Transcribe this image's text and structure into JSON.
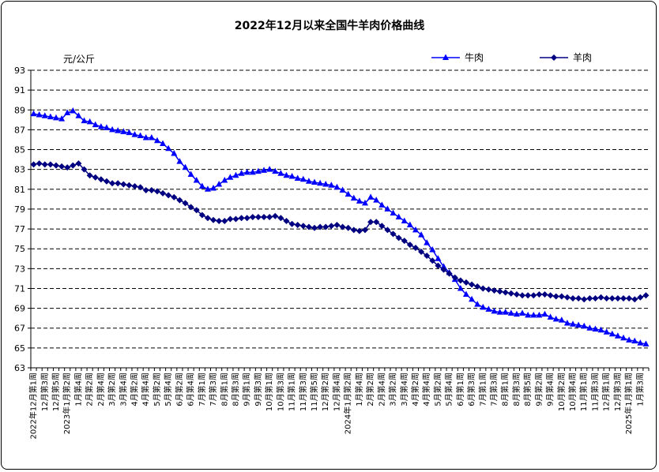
{
  "chart_data": {
    "type": "line",
    "title": "2022年12月以来全国牛羊肉价格曲线",
    "unit": "元/公斤",
    "ylim": [
      63,
      93
    ],
    "yticks": [
      "93",
      "91",
      "89",
      "87",
      "85",
      "83",
      "81",
      "79",
      "77",
      "75",
      "73",
      "71",
      "69",
      "67",
      "65",
      "63"
    ],
    "grid": true,
    "legend_position": "top-right",
    "categories": [
      "2022年12月第1周",
      "12月第2周",
      "12月第3周",
      "12月第4周",
      "12月第5周",
      "2023年1月第1周",
      "1月第2周",
      "1月第3周",
      "1月第4周",
      "2月第1周",
      "2月第2周",
      "2月第3周",
      "2月第4周",
      "3月第1周",
      "3月第2周",
      "3月第3周",
      "3月第4周",
      "4月第1周",
      "4月第2周",
      "4月第3周",
      "4月第4周",
      "5月第1周",
      "5月第2周",
      "5月第3周",
      "5月第4周",
      "6月第1周",
      "6月第2周",
      "6月第3周",
      "6月第4周",
      "6月第5周",
      "7月第1周",
      "7月第2周",
      "7月第3周",
      "7月第4周",
      "8月第1周",
      "8月第2周",
      "8月第3周",
      "8月第4周",
      "9月第1周",
      "9月第2周",
      "9月第3周",
      "9月第4周",
      "10月第1周",
      "10月第2周",
      "10月第3周",
      "10月第4周",
      "11月第1周",
      "11月第2周",
      "11月第3周",
      "11月第4周",
      "11月第5周",
      "12月第1周",
      "12月第2周",
      "12月第3周",
      "12月第4周",
      "2024年1月第1周",
      "1月第2周",
      "1月第3周",
      "1月第4周",
      "2月第1周",
      "2月第2周",
      "2月第3周",
      "2月第4周",
      "3月第1周",
      "3月第2周",
      "3月第3周",
      "3月第4周",
      "4月第1周",
      "4月第2周",
      "4月第3周",
      "4月第4周",
      "5月第1周",
      "5月第2周",
      "5月第3周",
      "5月第4周",
      "5月第5周",
      "6月第1周",
      "6月第2周",
      "6月第3周",
      "6月第4周",
      "7月第1周",
      "7月第2周",
      "7月第3周",
      "7月第4周",
      "8月第1周",
      "8月第2周",
      "8月第3周",
      "8月第4周",
      "8月第5周",
      "9月第1周",
      "9月第2周",
      "9月第3周",
      "9月第4周",
      "10月第1周",
      "10月第2周",
      "10月第3周",
      "10月第4周",
      "10月第5周",
      "11月第1周",
      "11月第2周",
      "11月第3周",
      "11月第4周",
      "12月第1周",
      "12月第2周",
      "12月第3周",
      "12月第4周",
      "2025年1月第1周",
      "1月第2周",
      "1月第3周",
      "1月第4周"
    ],
    "xtick_labels": [
      "2022年12月第1周",
      "12月第3周",
      "12月第5周",
      "2023年1月第2周",
      "1月第4周",
      "2月第2周",
      "2月第4周",
      "3月第2周",
      "3月第4周",
      "4月第2周",
      "4月第4周",
      "5月第2周",
      "5月第4周",
      "6月第2周",
      "6月第4周",
      "7月第1周",
      "7月第3周",
      "8月第1周",
      "8月第3周",
      "9月第1周",
      "9月第3周",
      "10月第1周",
      "10月第3周",
      "11月第1周",
      "11月第3周",
      "11月第5周",
      "12月第2周",
      "12月第4周",
      "2024年1月第2周",
      "1月第4周",
      "2月第2周",
      "2月第4周",
      "3月第2周",
      "3月第4周",
      "4月第2周",
      "4月第4周",
      "5月第2周",
      "5月第4周",
      "6月第1周",
      "6月第3周",
      "7月第1周",
      "7月第3周",
      "8月第1周",
      "8月第3周",
      "8月第5周",
      "9月第2周",
      "9月第4周",
      "10月第2周",
      "10月第4周",
      "11月第1周",
      "11月第3周",
      "12月第1周",
      "12月第3周",
      "2025年1月第1周",
      "1月第3周"
    ],
    "series": [
      {
        "name": "牛肉",
        "color": "#0000ff",
        "marker": "triangle",
        "values": [
          88.6,
          88.5,
          88.4,
          88.3,
          88.2,
          88.1,
          88.7,
          88.9,
          88.4,
          87.9,
          87.8,
          87.5,
          87.3,
          87.2,
          87.0,
          86.9,
          86.8,
          86.7,
          86.5,
          86.4,
          86.2,
          86.2,
          85.9,
          85.6,
          85.1,
          84.6,
          83.8,
          83.2,
          82.5,
          81.9,
          81.3,
          81.0,
          81.1,
          81.5,
          81.9,
          82.2,
          82.4,
          82.6,
          82.7,
          82.7,
          82.8,
          82.9,
          83.0,
          82.8,
          82.6,
          82.4,
          82.3,
          82.1,
          82.0,
          81.8,
          81.7,
          81.6,
          81.5,
          81.4,
          81.2,
          80.9,
          80.5,
          80.1,
          79.8,
          79.6,
          80.2,
          79.9,
          79.4,
          79.0,
          78.6,
          78.2,
          77.8,
          77.4,
          76.9,
          76.4,
          75.6,
          74.9,
          74.0,
          73.2,
          72.6,
          71.9,
          71.0,
          70.4,
          69.9,
          69.4,
          69.1,
          68.9,
          68.7,
          68.6,
          68.6,
          68.5,
          68.4,
          68.5,
          68.3,
          68.3,
          68.3,
          68.4,
          68.1,
          67.9,
          67.8,
          67.5,
          67.4,
          67.3,
          67.2,
          67.0,
          66.9,
          66.8,
          66.6,
          66.4,
          66.2,
          66.0,
          65.8,
          65.7,
          65.5,
          65.4
        ]
      },
      {
        "name": "羊肉",
        "color": "#000080",
        "marker": "diamond",
        "values": [
          83.5,
          83.6,
          83.5,
          83.5,
          83.4,
          83.3,
          83.2,
          83.4,
          83.6,
          83.0,
          82.4,
          82.2,
          82.0,
          81.8,
          81.6,
          81.6,
          81.5,
          81.4,
          81.3,
          81.2,
          80.9,
          80.9,
          80.8,
          80.6,
          80.4,
          80.2,
          79.9,
          79.6,
          79.2,
          78.9,
          78.4,
          78.1,
          77.9,
          77.8,
          77.8,
          78.0,
          78.0,
          78.1,
          78.1,
          78.2,
          78.2,
          78.2,
          78.2,
          78.3,
          78.1,
          77.8,
          77.5,
          77.4,
          77.3,
          77.2,
          77.1,
          77.2,
          77.2,
          77.3,
          77.4,
          77.2,
          77.1,
          76.9,
          76.8,
          76.9,
          77.7,
          77.7,
          77.3,
          76.9,
          76.5,
          76.1,
          75.8,
          75.4,
          75.1,
          74.7,
          74.3,
          73.8,
          73.3,
          72.9,
          72.5,
          72.1,
          71.8,
          71.6,
          71.4,
          71.2,
          71.0,
          70.9,
          70.8,
          70.7,
          70.6,
          70.5,
          70.4,
          70.3,
          70.3,
          70.3,
          70.4,
          70.4,
          70.3,
          70.2,
          70.2,
          70.1,
          70.0,
          70.0,
          69.9,
          70.0,
          70.0,
          70.1,
          70.0,
          70.0,
          70.0,
          70.0,
          70.0,
          69.9,
          70.1,
          70.3
        ]
      }
    ]
  }
}
